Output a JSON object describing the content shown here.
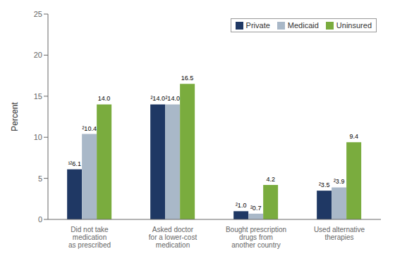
{
  "chart_data": {
    "type": "bar",
    "categories": [
      "Did not take\nmedication\nas prescribed",
      "Asked doctor\nfor a lower-cost\nmedication",
      "Bought prescription\ndrugs from\nanother country",
      "Used alternative\ntherapies"
    ],
    "series": [
      {
        "name": "Private",
        "color": "#1f3864",
        "values": [
          6.1,
          14.0,
          1.0,
          3.5
        ],
        "value_labels": [
          "¹²6.1",
          "²14.0",
          "²1.0",
          "²3.5"
        ]
      },
      {
        "name": "Medicaid",
        "color": "#a9b8c8",
        "values": [
          10.4,
          14.0,
          0.7,
          3.9
        ],
        "value_labels": [
          "²10.4",
          "²14.0",
          "²0.7",
          "²3.9"
        ]
      },
      {
        "name": "Uninsured",
        "color": "#7aac3e",
        "values": [
          14.0,
          16.5,
          4.2,
          9.4
        ],
        "value_labels": [
          "14.0",
          "16.5",
          "4.2",
          "9.4"
        ]
      }
    ],
    "ylabel": "Percent",
    "ylim": [
      0,
      25
    ],
    "yticks": [
      0,
      5,
      10,
      15,
      20,
      25
    ],
    "grid": false,
    "legend": "upper right",
    "data_labels": true
  }
}
